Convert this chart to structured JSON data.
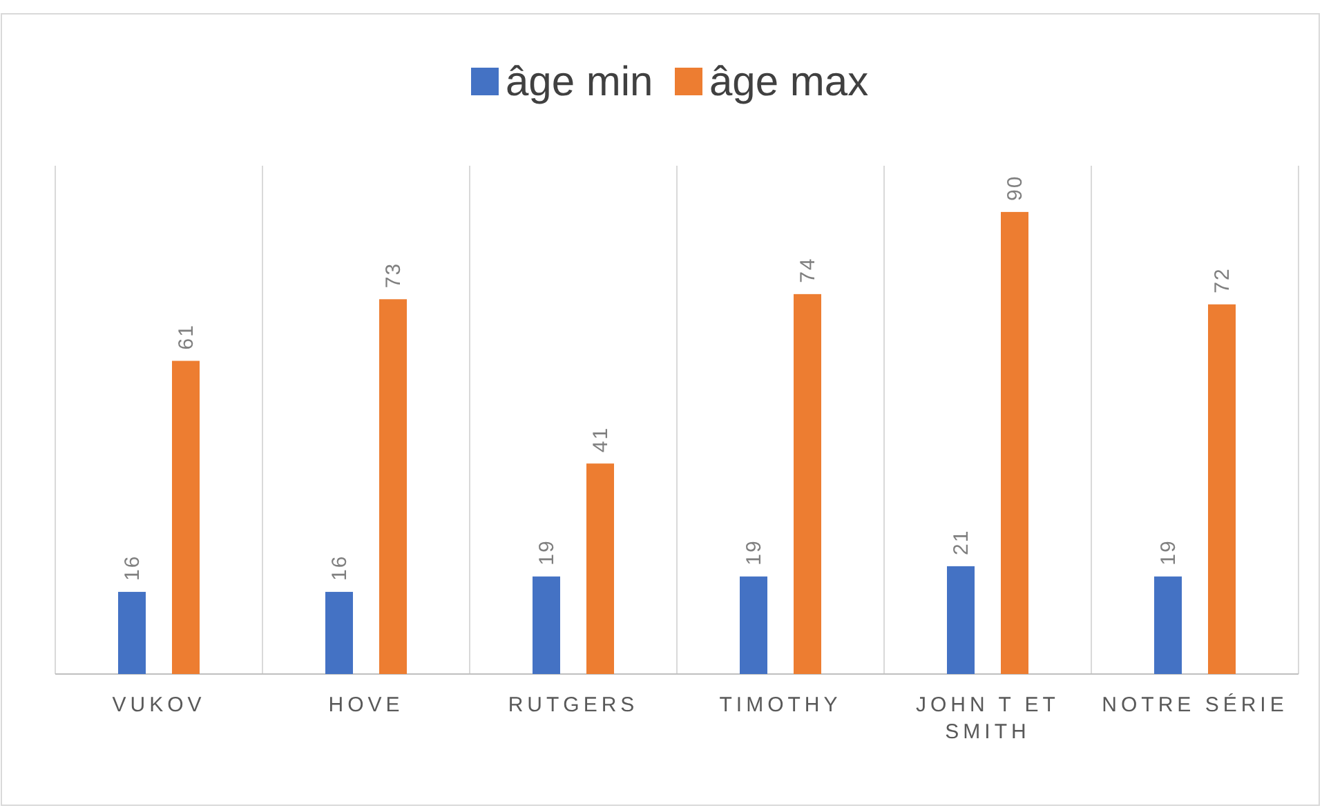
{
  "chart_data": {
    "type": "bar",
    "categories": [
      "VUKOV",
      "HOVE",
      "RUTGERS",
      "TIMOTHY",
      "JOHN T ET SMITH",
      "NOTRE SÉRIE"
    ],
    "series": [
      {
        "name": "âge min",
        "color": "#4472c4",
        "values": [
          16,
          16,
          19,
          19,
          21,
          19
        ]
      },
      {
        "name": "âge max",
        "color": "#ed7d31",
        "values": [
          61,
          73,
          41,
          74,
          90,
          72
        ]
      }
    ],
    "data_labels": true,
    "grid": "x",
    "legend": "top"
  }
}
